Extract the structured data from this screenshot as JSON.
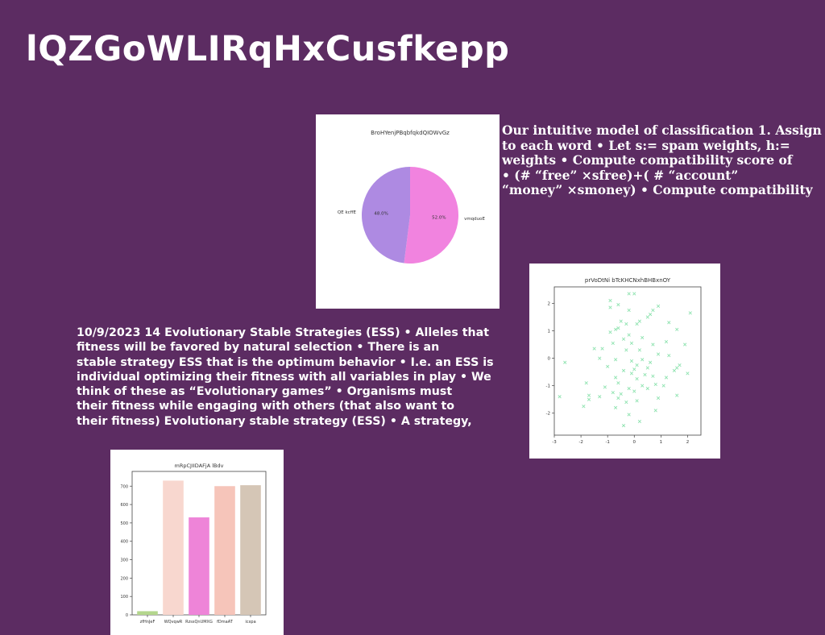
{
  "slide": {
    "title": "lQZGoWLIRqHxCusfkepp",
    "text_right_lines": [
      "Our intuitive model of classification 1. Assign",
      "to each word • Let s:= spam weights, h:=",
      "weights • Compute compatibility score of",
      "• (# “free” ×sfree)+( # “account”",
      "“money” ×smoney) • Compute compatibility"
    ],
    "text_left_lines": [
      "10/9/2023 14 Evolutionary Stable Strategies (ESS) • Alleles that",
      "fitness will be favored by natural selection • There is an",
      "stable strategy ESS that is the optimum behavior • I.e. an ESS is",
      "individual optimizing their fitness with all variables in play • We",
      "think of these as “Evolutionary games” • Organisms must",
      "their fitness while engaging with others (that also want to",
      "their fitness) Evolutionary stable strategy (ESS) • A strategy,"
    ]
  },
  "chart_data": [
    {
      "type": "pie",
      "title": "BroHYenjPBqbfqkdQIOWvGz",
      "slices": [
        {
          "label": "vmqduoE",
          "value": 52.0,
          "pct_label": "52.0%",
          "color": "#f183df"
        },
        {
          "label": "QE kcffE",
          "value": 48.0,
          "pct_label": "48.0%",
          "color": "#ae8ae2"
        }
      ]
    },
    {
      "type": "scatter",
      "title": "prVoDtNi bTcKHCNxhBHBxnOY",
      "marker": "x",
      "color": "#8fe3b0",
      "xlim": [
        -3,
        2.5
      ],
      "ylim": [
        -2.8,
        2.6
      ],
      "xticks": [
        "-3",
        "-2",
        "-1",
        "0",
        "1",
        "2"
      ],
      "yticks": [
        "2",
        "1",
        "0",
        "-1",
        "-2"
      ],
      "xtick_values": [
        -3,
        -2,
        -1,
        0,
        1,
        2
      ],
      "ytick_values": [
        2,
        1,
        0,
        -1,
        -2
      ],
      "points": [
        [
          -0.2,
          2.35
        ],
        [
          0.0,
          2.35
        ],
        [
          -0.9,
          2.1
        ],
        [
          -0.6,
          1.95
        ],
        [
          0.9,
          1.9
        ],
        [
          -0.9,
          1.85
        ],
        [
          0.7,
          1.75
        ],
        [
          -0.2,
          1.75
        ],
        [
          0.6,
          1.6
        ],
        [
          0.5,
          1.5
        ],
        [
          2.1,
          1.65
        ],
        [
          -0.5,
          1.35
        ],
        [
          1.3,
          1.3
        ],
        [
          0.2,
          1.35
        ],
        [
          -0.3,
          1.25
        ],
        [
          0.1,
          1.25
        ],
        [
          -0.6,
          1.1
        ],
        [
          -0.7,
          1.05
        ],
        [
          1.6,
          1.05
        ],
        [
          -0.9,
          0.95
        ],
        [
          -0.2,
          0.85
        ],
        [
          0.3,
          0.75
        ],
        [
          -0.4,
          0.7
        ],
        [
          1.2,
          0.6
        ],
        [
          -0.8,
          0.55
        ],
        [
          -0.1,
          0.55
        ],
        [
          0.7,
          0.5
        ],
        [
          1.9,
          0.5
        ],
        [
          -1.5,
          0.35
        ],
        [
          -1.2,
          0.35
        ],
        [
          -0.3,
          0.3
        ],
        [
          0.2,
          0.3
        ],
        [
          0.9,
          0.15
        ],
        [
          1.3,
          0.1
        ],
        [
          -1.3,
          0.0
        ],
        [
          -0.7,
          -0.05
        ],
        [
          0.3,
          -0.05
        ],
        [
          -0.1,
          -0.1
        ],
        [
          0.6,
          -0.15
        ],
        [
          1.7,
          -0.25
        ],
        [
          -2.6,
          -0.15
        ],
        [
          0.1,
          -0.25
        ],
        [
          -1.0,
          -0.3
        ],
        [
          0.5,
          -0.35
        ],
        [
          1.6,
          -0.35
        ],
        [
          -0.4,
          -0.45
        ],
        [
          0.0,
          -0.4
        ],
        [
          1.5,
          -0.45
        ],
        [
          2.0,
          -0.55
        ],
        [
          -0.1,
          -0.55
        ],
        [
          0.4,
          -0.6
        ],
        [
          0.7,
          -0.65
        ],
        [
          -0.7,
          -0.7
        ],
        [
          1.2,
          -0.7
        ],
        [
          0.1,
          -0.75
        ],
        [
          -1.8,
          -0.9
        ],
        [
          -0.6,
          -0.9
        ],
        [
          0.8,
          -0.95
        ],
        [
          0.3,
          -1.0
        ],
        [
          1.1,
          -1.0
        ],
        [
          -1.1,
          -1.05
        ],
        [
          -0.2,
          -1.1
        ],
        [
          0.5,
          -1.1
        ],
        [
          -0.8,
          -1.25
        ],
        [
          0.0,
          -1.2
        ],
        [
          -0.5,
          -1.3
        ],
        [
          1.6,
          -1.35
        ],
        [
          -1.7,
          -1.35
        ],
        [
          -1.3,
          -1.4
        ],
        [
          -0.6,
          -1.45
        ],
        [
          0.9,
          -1.45
        ],
        [
          -2.8,
          -1.4
        ],
        [
          -1.7,
          -1.5
        ],
        [
          0.1,
          -1.55
        ],
        [
          -0.3,
          -1.6
        ],
        [
          -1.9,
          -1.75
        ],
        [
          -0.7,
          -1.8
        ],
        [
          0.8,
          -1.9
        ],
        [
          0.2,
          -2.3
        ],
        [
          -0.4,
          -2.45
        ],
        [
          -0.2,
          -2.05
        ]
      ]
    },
    {
      "type": "bar",
      "title": "mRpCJIIDAFjA lBdv",
      "categories": [
        "zfHnJeF",
        "WQvqwR",
        "RzssQnUMXG",
        "fDmaAT",
        "icxpa"
      ],
      "values": [
        20,
        730,
        530,
        700,
        705
      ],
      "colors": [
        "#b4d68d",
        "#f8d7cf",
        "#ee84d8",
        "#f6c5ba",
        "#d5c6b6"
      ],
      "ylim": [
        0,
        780
      ],
      "yticks": [
        "0",
        "100",
        "200",
        "300",
        "400",
        "500",
        "600",
        "700"
      ],
      "ytick_values": [
        0,
        100,
        200,
        300,
        400,
        500,
        600,
        700
      ]
    }
  ]
}
